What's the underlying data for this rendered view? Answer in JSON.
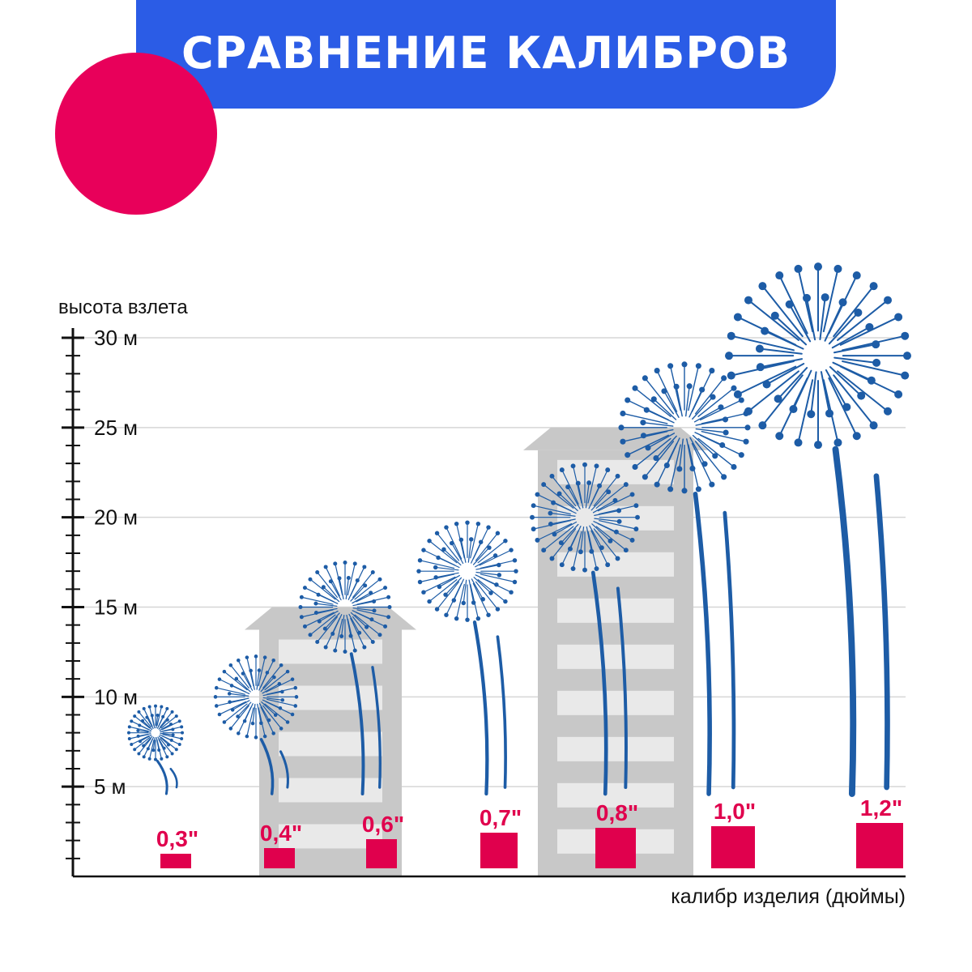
{
  "header": {
    "title": "СРАВНЕНИЕ КАЛИБРОВ"
  },
  "chart_data": {
    "type": "bar",
    "title": "СРАВНЕНИЕ КАЛИБРОВ",
    "ylabel": "высота взлета",
    "xlabel": "калибр изделия (дюймы)",
    "ylim": [
      0,
      30
    ],
    "yticks": [
      {
        "value": 5,
        "label": "5 м"
      },
      {
        "value": 10,
        "label": "10 м"
      },
      {
        "value": 15,
        "label": "15 м"
      },
      {
        "value": 20,
        "label": "20 м"
      },
      {
        "value": 25,
        "label": "25 м"
      },
      {
        "value": 30,
        "label": "30 м"
      }
    ],
    "categories": [
      "0,3\"",
      "0,4\"",
      "0,6\"",
      "0,7\"",
      "0,8\"",
      "1,0\"",
      "1,2\""
    ],
    "values": [
      8,
      10,
      15,
      17,
      20,
      25,
      29
    ],
    "buildings": [
      15,
      25
    ],
    "grid": true,
    "colors": {
      "accent_blue": "#2b5ce6",
      "firework": "#1d5ca6",
      "caliber": "#e0004d",
      "building": "#c8c8c8"
    }
  }
}
